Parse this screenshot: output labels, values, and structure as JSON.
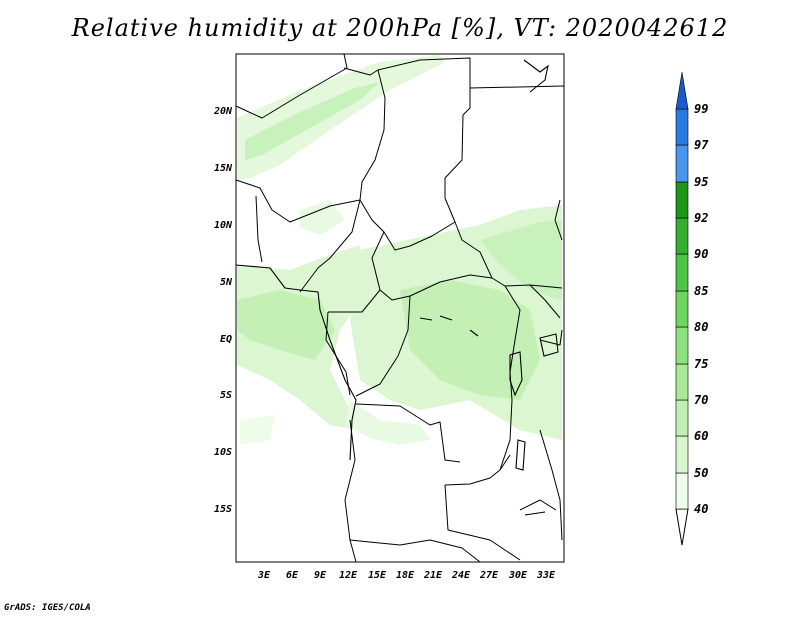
{
  "title": "Relative humidity at 200hPa [%], VT: 2020042612",
  "credit": "GrADS: IGES/COLA",
  "map": {
    "lat_labels": [
      "20N",
      "15N",
      "10N",
      "5N",
      "EQ",
      "5S",
      "10S",
      "15S"
    ],
    "lon_labels": [
      "3E",
      "6E",
      "9E",
      "12E",
      "15E",
      "18E",
      "21E",
      "24E",
      "27E",
      "30E",
      "33E"
    ]
  },
  "colorbar": {
    "levels": [
      "40",
      "50",
      "60",
      "70",
      "75",
      "80",
      "85",
      "90",
      "92",
      "95",
      "97",
      "99"
    ],
    "colors": {
      "c40_50": "#eefcea",
      "c50_60": "#d8f6d0",
      "c60_70": "#c0f0b4",
      "c70_75": "#a8ea98",
      "c75_80": "#8ee27e",
      "c80_85": "#6cd660",
      "c85_90": "#4ec444",
      "c90_92": "#36ae30",
      "c92_95": "#1e9618",
      "c95_97": "#4a96ec",
      "c97_99": "#2a78e0",
      "c99_up": "#1a5ad0"
    }
  }
}
